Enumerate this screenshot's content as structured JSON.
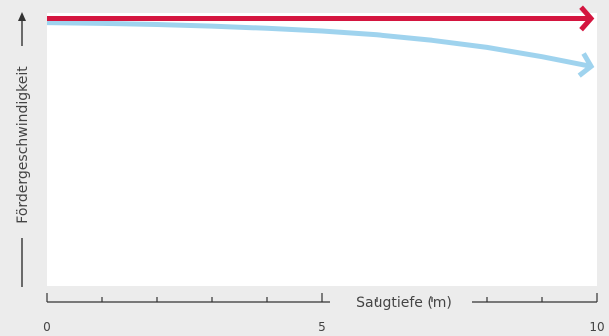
{
  "chart_data": {
    "type": "line",
    "title": "",
    "xlabel": "Saugtiefe (m)",
    "ylabel": "Fördergeschwindigkeit",
    "xlim": [
      0,
      10
    ],
    "ylim": [
      0,
      1
    ],
    "x_ticks": [
      0,
      1,
      2,
      3,
      4,
      5,
      6,
      7,
      8,
      9,
      10
    ],
    "x_tick_labels": [
      "0",
      "5",
      "10"
    ],
    "x_tick_label_values": [
      0,
      5,
      10
    ],
    "grid": false,
    "legend": "none",
    "series": [
      {
        "color": "#d4153f",
        "x": [
          0,
          10
        ],
        "y": [
          0.98,
          0.98
        ]
      },
      {
        "color": "#9fd3ee",
        "x": [
          0,
          1,
          2,
          3,
          4,
          5,
          6,
          7,
          8,
          9,
          10
        ],
        "y": [
          0.965,
          0.962,
          0.958,
          0.952,
          0.944,
          0.934,
          0.92,
          0.9,
          0.874,
          0.84,
          0.8
        ]
      }
    ]
  }
}
